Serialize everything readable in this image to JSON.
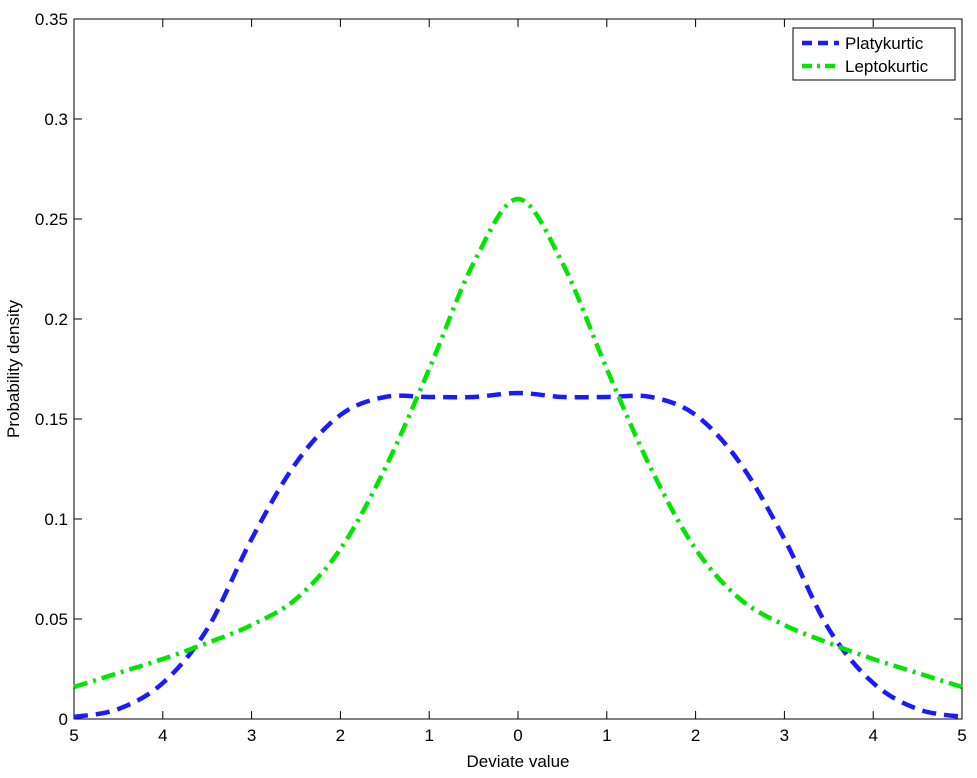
{
  "chart_data": {
    "type": "line",
    "title": "",
    "xlabel": "Deviate value",
    "ylabel": "Probability density",
    "xlim": [
      -5,
      5
    ],
    "ylim": [
      0,
      0.35
    ],
    "x_ticks": [
      -5,
      -4,
      -3,
      -2,
      -1,
      0,
      1,
      2,
      3,
      4,
      5
    ],
    "x_tick_labels": [
      "5",
      "4",
      "3",
      "2",
      "1",
      "0",
      "1",
      "2",
      "3",
      "4",
      "5"
    ],
    "y_ticks": [
      0,
      0.05,
      0.1,
      0.15,
      0.2,
      0.25,
      0.3,
      0.35
    ],
    "y_tick_labels": [
      "0",
      "0.05",
      "0.1",
      "0.15",
      "0.2",
      "0.25",
      "0.3",
      "0.35"
    ],
    "grid": false,
    "legend_position": "top-right",
    "series": [
      {
        "name": "Platykurtic",
        "color": "#1a1aff",
        "dash": "dashed",
        "x": [
          -5,
          -4.5,
          -4,
          -3.5,
          -3,
          -2.5,
          -2,
          -1.5,
          -1,
          -0.5,
          0,
          0.5,
          1,
          1.5,
          2,
          2.5,
          3,
          3.5,
          4,
          4.5,
          5
        ],
        "y": [
          0.001,
          0.005,
          0.018,
          0.045,
          0.09,
          0.128,
          0.152,
          0.161,
          0.161,
          0.161,
          0.163,
          0.161,
          0.161,
          0.161,
          0.152,
          0.128,
          0.09,
          0.045,
          0.018,
          0.005,
          0.001
        ]
      },
      {
        "name": "Leptokurtic",
        "color": "#00e600",
        "dash": "dash-dot",
        "x": [
          -5,
          -4.5,
          -4,
          -3.5,
          -3,
          -2.5,
          -2,
          -1.5,
          -1,
          -0.5,
          0,
          0.5,
          1,
          1.5,
          2,
          2.5,
          3,
          3.5,
          4,
          4.5,
          5
        ],
        "y": [
          0.016,
          0.023,
          0.03,
          0.038,
          0.047,
          0.06,
          0.085,
          0.125,
          0.175,
          0.228,
          0.26,
          0.228,
          0.175,
          0.125,
          0.085,
          0.06,
          0.047,
          0.038,
          0.03,
          0.023,
          0.016
        ]
      }
    ]
  }
}
